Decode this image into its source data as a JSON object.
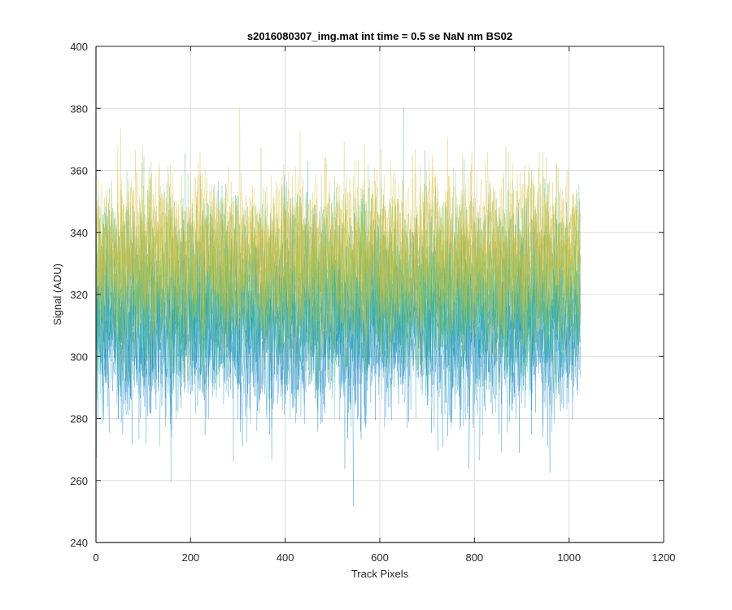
{
  "chart_data": {
    "type": "line",
    "title": "s2016080307_img.mat int time = 0.5 se  NaN nm BS02",
    "xlabel": "Track Pixels",
    "ylabel": "Signal (ADU)",
    "xlim": [
      0,
      1200
    ],
    "ylim": [
      240,
      400
    ],
    "xticks": [
      0,
      200,
      400,
      600,
      800,
      1000,
      1200
    ],
    "yticks": [
      240,
      260,
      280,
      300,
      320,
      340,
      360,
      380,
      400
    ],
    "xtick_labels": [
      "0",
      "200",
      "400",
      "600",
      "800",
      "1000",
      "1200"
    ],
    "ytick_labels": [
      "240",
      "260",
      "280",
      "300",
      "320",
      "340",
      "360",
      "380",
      "400"
    ],
    "grid": true,
    "x_range": [
      1,
      1024
    ],
    "series_colors": [
      "#0072BD",
      "#1F96C8",
      "#20A7A6",
      "#3BB890",
      "#77BE5F",
      "#B8C13E",
      "#E0BA3A"
    ],
    "series_levels": [
      {
        "color": "#0072BD",
        "mean": 306,
        "spread": 13
      },
      {
        "color": "#1F96C8",
        "mean": 311,
        "spread": 13
      },
      {
        "color": "#20A7A6",
        "mean": 317,
        "spread": 13
      },
      {
        "color": "#3BB890",
        "mean": 322,
        "spread": 13
      },
      {
        "color": "#77BE5F",
        "mean": 327,
        "spread": 12
      },
      {
        "color": "#B8C13E",
        "mean": 331,
        "spread": 12
      },
      {
        "color": "#E0BA3A",
        "mean": 335,
        "spread": 12
      }
    ]
  }
}
